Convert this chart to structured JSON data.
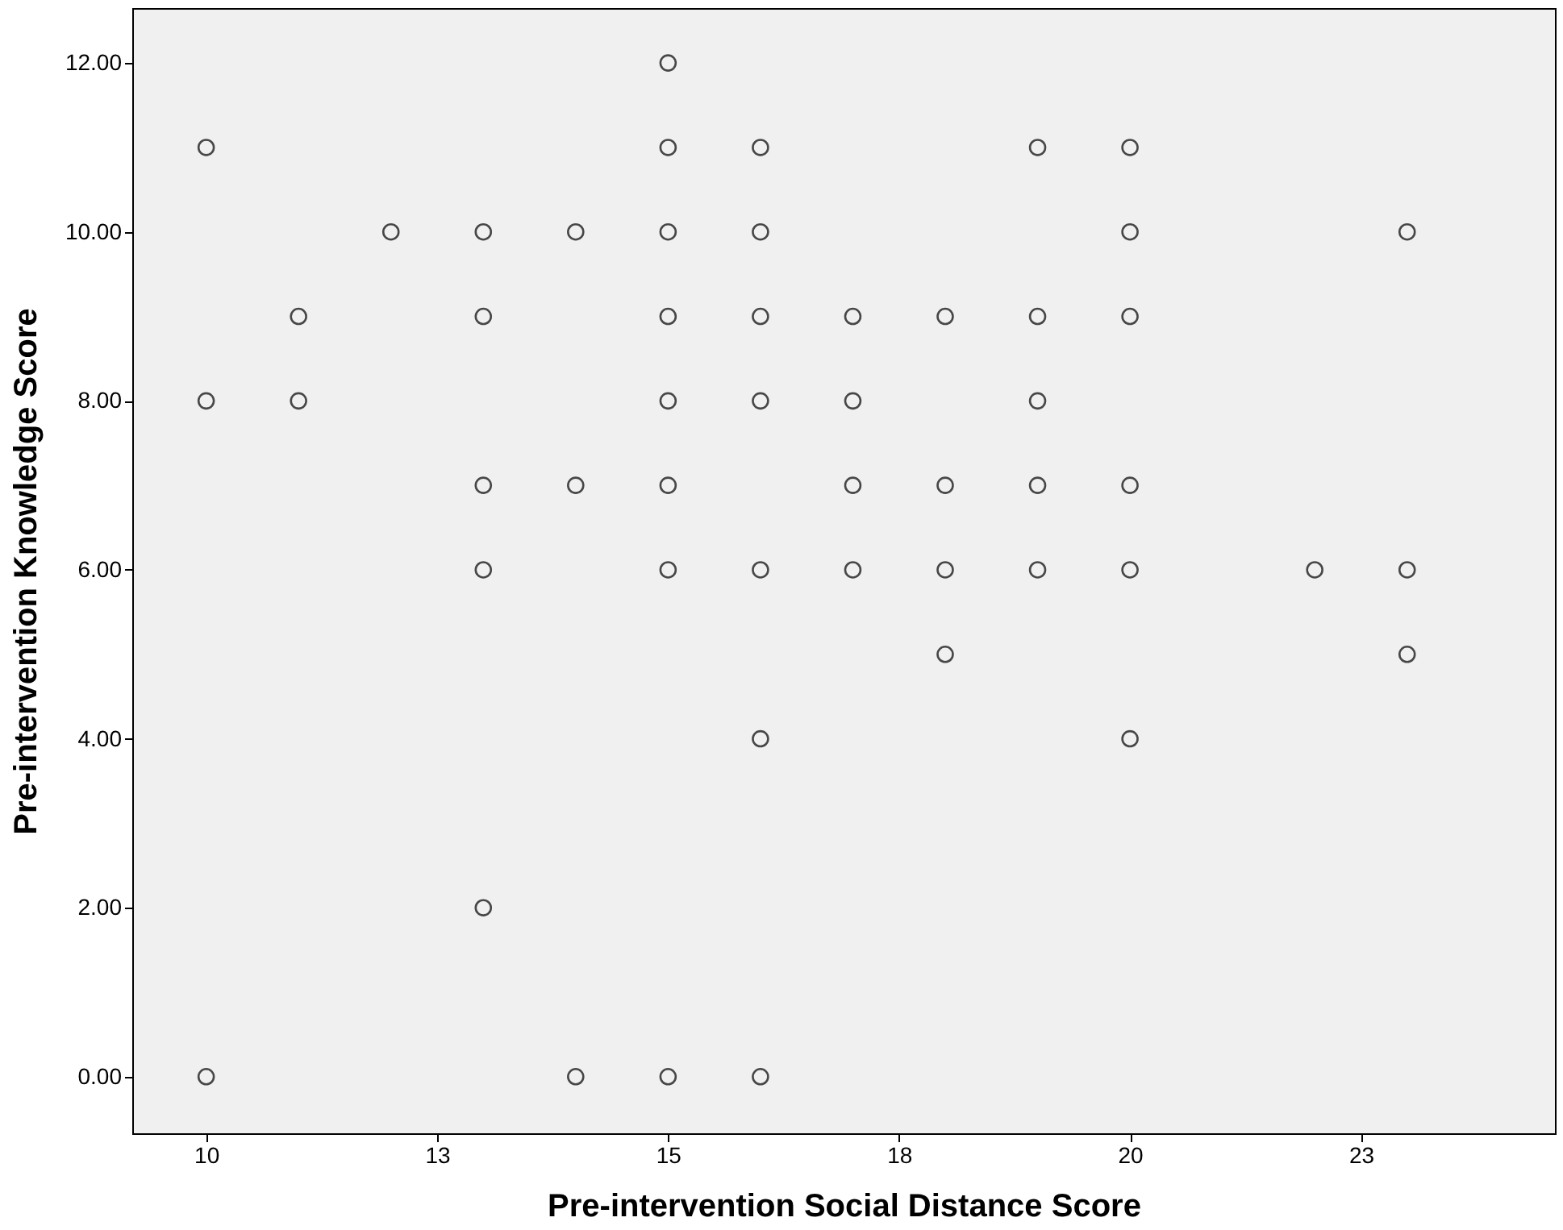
{
  "chart_data": {
    "type": "scatter",
    "xlabel": "Pre-intervention Social Distance Score",
    "ylabel": "Pre-intervention Knowledge Score",
    "x": [
      10,
      10,
      10,
      11,
      11,
      12,
      13,
      13,
      13,
      13,
      13,
      14,
      14,
      14,
      15,
      15,
      15,
      15,
      15,
      15,
      15,
      15,
      16,
      16,
      16,
      16,
      16,
      16,
      16,
      17,
      17,
      17,
      17,
      18,
      18,
      18,
      18,
      19,
      19,
      19,
      19,
      19,
      20,
      20,
      20,
      20,
      20,
      20,
      22,
      23,
      23,
      23
    ],
    "series": [
      {
        "color": "#000000",
        "values": [
          11,
          8,
          0,
          9,
          8,
          10,
          10,
          9,
          7,
          6,
          2,
          10,
          7,
          0,
          12,
          11,
          10,
          9,
          8,
          7,
          6,
          0,
          11,
          10,
          9,
          8,
          6,
          4,
          0,
          9,
          8,
          7,
          6,
          9,
          7,
          6,
          5,
          11,
          9,
          8,
          7,
          6,
          11,
          10,
          9,
          7,
          6,
          4,
          6,
          10,
          6,
          5
        ]
      }
    ],
    "xlim": [
      9.2,
      24.6
    ],
    "xticks": [
      {
        "value": 10,
        "label": "10"
      },
      {
        "value": 12.5,
        "label": "13"
      },
      {
        "value": 15,
        "label": "15"
      },
      {
        "value": 17.5,
        "label": "18"
      },
      {
        "value": 20,
        "label": "20"
      },
      {
        "value": 22.5,
        "label": "23"
      }
    ],
    "ylim": [
      -0.67,
      12.65
    ],
    "yticks": [
      {
        "value": 0,
        "label": "0.00"
      },
      {
        "value": 2,
        "label": "2.00"
      },
      {
        "value": 4,
        "label": "4.00"
      },
      {
        "value": 6,
        "label": "6.00"
      },
      {
        "value": 8,
        "label": "8.00"
      },
      {
        "value": 10,
        "label": "10.00"
      },
      {
        "value": 12,
        "label": "12.00"
      }
    ],
    "marker": "circle",
    "grid": false
  }
}
